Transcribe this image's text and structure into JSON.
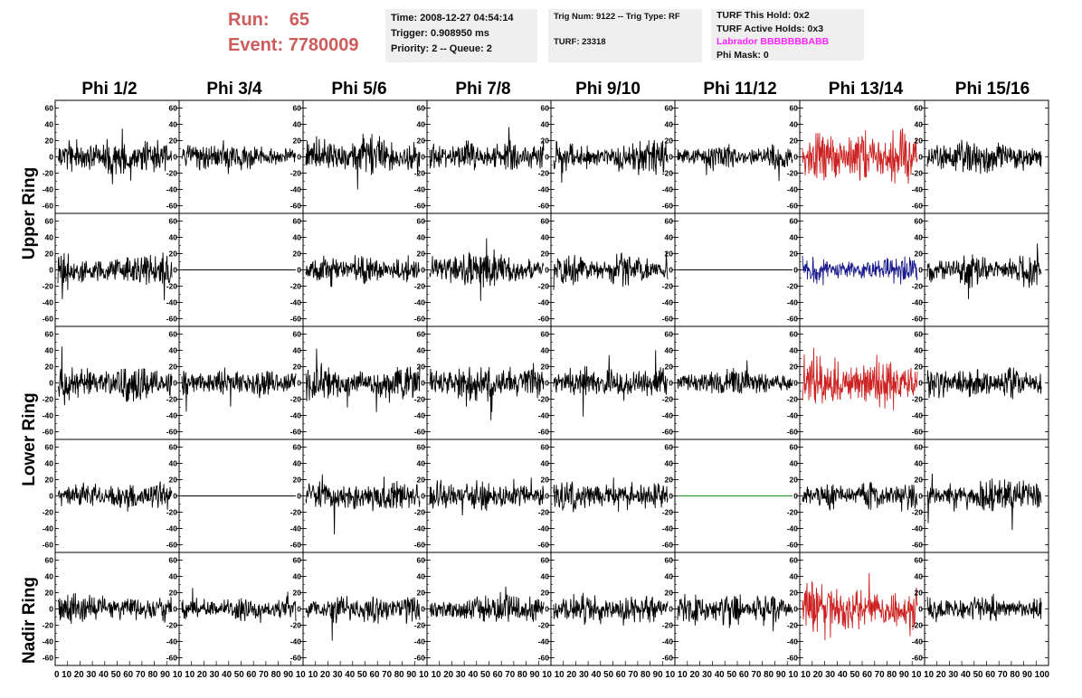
{
  "run_label": "Run:",
  "run_value": "65",
  "event_label": "Event:",
  "event_value": "7780009",
  "info_time": "Time: 2008-12-27 04:54:14",
  "info_trigger": "Trigger: 0.908950 ms",
  "info_priority": "Priority: 2 -- Queue: 2",
  "info_trig": "Trig Num: 9122 -- Trig Type: RF",
  "info_turf": "TURF: 23318",
  "info_hold": "TURF This Hold: 0x2",
  "info_active": "TURF Active Holds: 0x3",
  "info_labrador": "Labrador BBBBBBBABB",
  "info_phimask": "Phi Mask: 0",
  "colors": {
    "title": "#cd5c5c",
    "trace_default": "#000000",
    "trace_red": "#cc2222",
    "trace_blue": "#1a1a8c",
    "trace_green": "#1e8c1e",
    "info_bg": "#efefef",
    "labrador": "#ff22ff"
  },
  "chart_data": {
    "type": "line",
    "columns": [
      "Phi 1/2",
      "Phi 3/4",
      "Phi 5/6",
      "Phi 7/8",
      "Phi 9/10",
      "Phi 11/12",
      "Phi 13/14",
      "Phi 15/16"
    ],
    "ring_labels": [
      "Upper Ring",
      "Lower Ring",
      "Nadir Ring"
    ],
    "rows": 5,
    "ylim": [
      -65,
      65
    ],
    "yticks": [
      -60,
      -40,
      -20,
      0,
      20,
      40,
      60
    ],
    "xlim": [
      0,
      100
    ],
    "xtick_labels": [
      "0",
      "10",
      "20",
      "30",
      "40",
      "50",
      "60",
      "70",
      "80",
      "90",
      "100"
    ],
    "x_axis_text": "0 10 20 30 40 50 60 70 80 90 10 10 20 30 40 50 60 70 80 90 10 10 20 30 40 50 60 70 80 90 10 10 20 30 40 50 60 70 80 90 10 10 20 30 40 50 60 70 80 90 10 10 20 30 40 50 60 70 80 90 10 10 20 30 40 50 60 70 80 90 10 10 20 30 40 50 60 70 80 90 100",
    "waveform_samples": 256,
    "panels": [
      {
        "row": 0,
        "col": 0,
        "amp": 16,
        "color": "trace_default",
        "seed": 11
      },
      {
        "row": 0,
        "col": 1,
        "amp": 12,
        "color": "trace_default",
        "seed": 12
      },
      {
        "row": 0,
        "col": 2,
        "amp": 17,
        "color": "trace_default",
        "seed": 13
      },
      {
        "row": 0,
        "col": 3,
        "amp": 14,
        "color": "trace_default",
        "seed": 14
      },
      {
        "row": 0,
        "col": 4,
        "amp": 15,
        "color": "trace_default",
        "seed": 15
      },
      {
        "row": 0,
        "col": 5,
        "amp": 11,
        "color": "trace_default",
        "seed": 16
      },
      {
        "row": 0,
        "col": 6,
        "amp": 24,
        "color": "trace_red",
        "seed": 17
      },
      {
        "row": 0,
        "col": 7,
        "amp": 14,
        "color": "trace_default",
        "seed": 18
      },
      {
        "row": 1,
        "col": 0,
        "amp": 15,
        "color": "trace_default",
        "seed": 21
      },
      {
        "row": 1,
        "col": 1,
        "amp": 0,
        "color": "trace_default",
        "seed": 22
      },
      {
        "row": 1,
        "col": 2,
        "amp": 13,
        "color": "trace_default",
        "seed": 23
      },
      {
        "row": 1,
        "col": 3,
        "amp": 15,
        "color": "trace_default",
        "seed": 24
      },
      {
        "row": 1,
        "col": 4,
        "amp": 14,
        "color": "trace_default",
        "seed": 25
      },
      {
        "row": 1,
        "col": 5,
        "amp": 0,
        "color": "trace_default",
        "seed": 26
      },
      {
        "row": 1,
        "col": 6,
        "amp": 12,
        "color": "trace_blue",
        "seed": 27
      },
      {
        "row": 1,
        "col": 7,
        "amp": 14,
        "color": "trace_default",
        "seed": 28
      },
      {
        "row": 2,
        "col": 0,
        "amp": 16,
        "color": "trace_default",
        "seed": 31
      },
      {
        "row": 2,
        "col": 1,
        "amp": 12,
        "color": "trace_default",
        "seed": 32
      },
      {
        "row": 2,
        "col": 2,
        "amp": 17,
        "color": "trace_default",
        "seed": 33
      },
      {
        "row": 2,
        "col": 3,
        "amp": 16,
        "color": "trace_default",
        "seed": 34
      },
      {
        "row": 2,
        "col": 4,
        "amp": 15,
        "color": "trace_default",
        "seed": 35
      },
      {
        "row": 2,
        "col": 5,
        "amp": 11,
        "color": "trace_default",
        "seed": 36
      },
      {
        "row": 2,
        "col": 6,
        "amp": 24,
        "color": "trace_red",
        "seed": 37
      },
      {
        "row": 2,
        "col": 7,
        "amp": 14,
        "color": "trace_default",
        "seed": 38
      },
      {
        "row": 3,
        "col": 0,
        "amp": 12,
        "color": "trace_default",
        "seed": 41
      },
      {
        "row": 3,
        "col": 1,
        "amp": 0,
        "color": "trace_default",
        "seed": 42
      },
      {
        "row": 3,
        "col": 2,
        "amp": 14,
        "color": "trace_default",
        "seed": 43
      },
      {
        "row": 3,
        "col": 3,
        "amp": 14,
        "color": "trace_default",
        "seed": 44
      },
      {
        "row": 3,
        "col": 4,
        "amp": 13,
        "color": "trace_default",
        "seed": 45
      },
      {
        "row": 3,
        "col": 5,
        "amp": 0,
        "color": "trace_green",
        "seed": 46
      },
      {
        "row": 3,
        "col": 6,
        "amp": 12,
        "color": "trace_default",
        "seed": 47
      },
      {
        "row": 3,
        "col": 7,
        "amp": 15,
        "color": "trace_default",
        "seed": 48
      },
      {
        "row": 4,
        "col": 0,
        "amp": 14,
        "color": "trace_default",
        "seed": 51
      },
      {
        "row": 4,
        "col": 1,
        "amp": 11,
        "color": "trace_default",
        "seed": 52
      },
      {
        "row": 4,
        "col": 2,
        "amp": 13,
        "color": "trace_default",
        "seed": 53
      },
      {
        "row": 4,
        "col": 3,
        "amp": 13,
        "color": "trace_default",
        "seed": 54
      },
      {
        "row": 4,
        "col": 4,
        "amp": 13,
        "color": "trace_default",
        "seed": 55
      },
      {
        "row": 4,
        "col": 5,
        "amp": 15,
        "color": "trace_default",
        "seed": 56
      },
      {
        "row": 4,
        "col": 6,
        "amp": 22,
        "color": "trace_red",
        "seed": 57
      },
      {
        "row": 4,
        "col": 7,
        "amp": 13,
        "color": "trace_default",
        "seed": 58
      }
    ]
  }
}
